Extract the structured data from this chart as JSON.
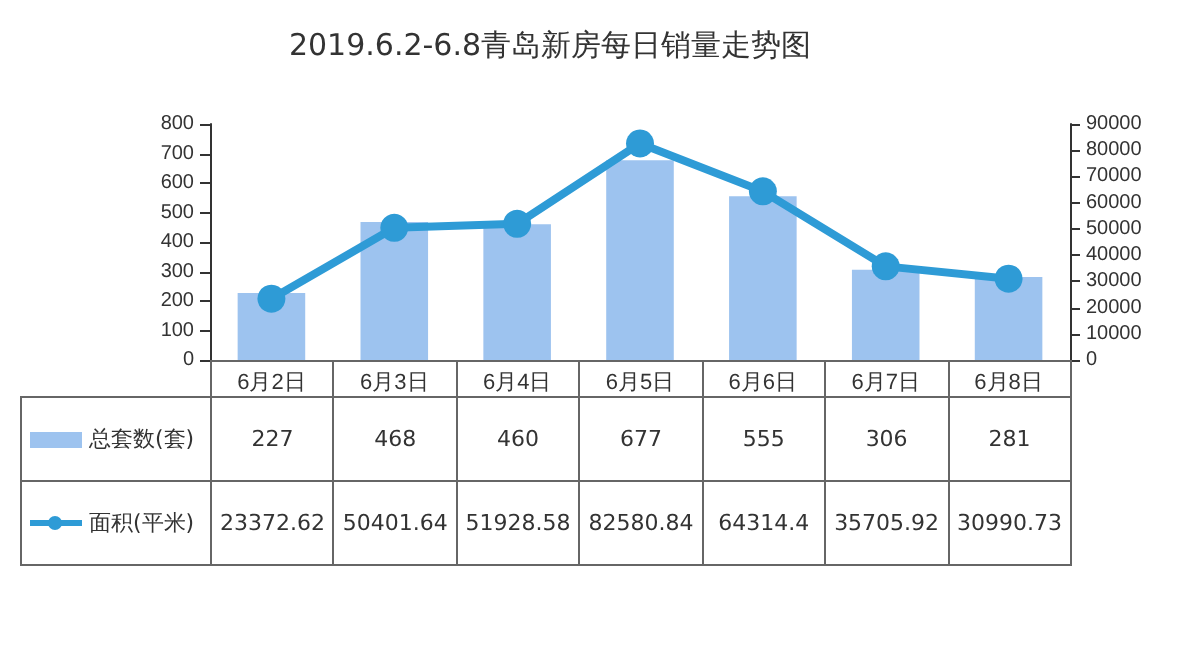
{
  "chart_data": {
    "type": "bar",
    "title": "2019.6.2-6.8青岛新房每日销量走势图",
    "categories": [
      "6月2日",
      "6月3日",
      "6月4日",
      "6月5日",
      "6月6日",
      "6月7日",
      "6月8日"
    ],
    "series": [
      {
        "name": "总套数(套)",
        "color": "#9dc3ef",
        "values": [
          227,
          468,
          460,
          677,
          555,
          306,
          281
        ]
      },
      {
        "name": "面积(平米)",
        "type": "line",
        "axis": "y2",
        "color": "#2e9bd6",
        "values": [
          23372.62,
          50401.64,
          51928.58,
          82580.84,
          64314.4,
          35705.92,
          30990.73
        ]
      }
    ],
    "ylim": [
      0,
      800
    ],
    "yticks": [
      0,
      100,
      200,
      300,
      400,
      500,
      600,
      700,
      800
    ],
    "y2lim": [
      0,
      90000
    ],
    "y2ticks": [
      0,
      10000,
      20000,
      30000,
      40000,
      50000,
      60000,
      70000,
      80000,
      90000
    ],
    "data_labels": true,
    "legend": "bottom",
    "marker": "circle",
    "grid": false
  }
}
